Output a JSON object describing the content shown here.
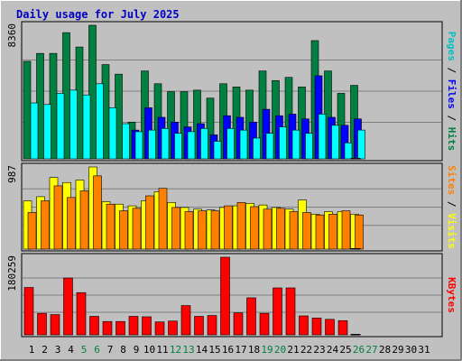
{
  "chart_data": [
    {
      "type": "bar",
      "title": "Daily usage for July 2025",
      "categories": [
        "1",
        "2",
        "3",
        "4",
        "5",
        "6",
        "7",
        "8",
        "9",
        "10",
        "11",
        "12",
        "13",
        "14",
        "15",
        "16",
        "17",
        "18",
        "19",
        "20",
        "21",
        "22",
        "23",
        "24",
        "25",
        "26",
        "27",
        "28",
        "29",
        "30",
        "31"
      ],
      "weekend_days": [
        "5",
        "6",
        "12",
        "13",
        "19",
        "20",
        "26",
        "27"
      ],
      "y_max_label": "8360",
      "ylim": [
        0,
        8360
      ],
      "right_label": [
        "Pages",
        " / ",
        "Files",
        " / ",
        "Hits"
      ],
      "series": [
        {
          "name": "Hits",
          "color": "#008040",
          "values": [
            6100,
            6600,
            6600,
            7900,
            7000,
            8360,
            5900,
            5300,
            2300,
            5500,
            4700,
            4200,
            4200,
            4300,
            3800,
            4700,
            4500,
            4300,
            5500,
            4900,
            5100,
            4500,
            7400,
            5500,
            4100,
            4600,
            0,
            0,
            0,
            0,
            0
          ]
        },
        {
          "name": "Files",
          "color": "#0000ff",
          "values": [
            0,
            0,
            0,
            0,
            0,
            0,
            0,
            0,
            1800,
            3200,
            2600,
            2300,
            2000,
            2200,
            1500,
            2700,
            2600,
            2300,
            3100,
            2700,
            2800,
            2500,
            5200,
            2600,
            2100,
            2500,
            0,
            0,
            0,
            0,
            0
          ]
        },
        {
          "name": "Pages",
          "color": "#00ffff",
          "values": [
            3500,
            3400,
            4100,
            4300,
            4000,
            4700,
            3200,
            2200,
            1700,
            1800,
            1900,
            1600,
            1700,
            1900,
            1100,
            1900,
            1800,
            1300,
            1600,
            2000,
            1800,
            1600,
            2800,
            2100,
            1000,
            1800,
            0,
            0,
            0,
            0,
            0
          ]
        }
      ]
    },
    {
      "type": "bar",
      "y_max_label": "987",
      "ylim": [
        0,
        987
      ],
      "right_label": [
        "Sites",
        " / ",
        "Visits"
      ],
      "series": [
        {
          "name": "Visits",
          "color": "#ffff00",
          "values": [
            580,
            630,
            860,
            800,
            830,
            987,
            570,
            540,
            520,
            580,
            690,
            560,
            500,
            480,
            470,
            500,
            520,
            550,
            530,
            500,
            480,
            590,
            420,
            450,
            450,
            420,
            0,
            0,
            0,
            0,
            0
          ]
        },
        {
          "name": "Sites",
          "color": "#ff8000",
          "values": [
            440,
            580,
            760,
            620,
            700,
            880,
            540,
            460,
            490,
            640,
            730,
            500,
            450,
            460,
            460,
            520,
            560,
            510,
            480,
            490,
            450,
            440,
            410,
            420,
            460,
            410,
            0,
            0,
            0,
            0,
            0
          ]
        }
      ]
    },
    {
      "type": "bar",
      "y_max_label": "180259",
      "ylim": [
        0,
        180259
      ],
      "right_label": [
        "KBytes"
      ],
      "series": [
        {
          "name": "KBytes",
          "color": "#ff0000",
          "values": [
            110000,
            50000,
            47000,
            132000,
            98000,
            43000,
            31000,
            31000,
            43000,
            42000,
            30000,
            32000,
            68000,
            43000,
            45000,
            180259,
            51000,
            86000,
            50000,
            109000,
            109000,
            44000,
            39000,
            36000,
            33000,
            0,
            0,
            0,
            0,
            0,
            0
          ]
        }
      ]
    }
  ]
}
